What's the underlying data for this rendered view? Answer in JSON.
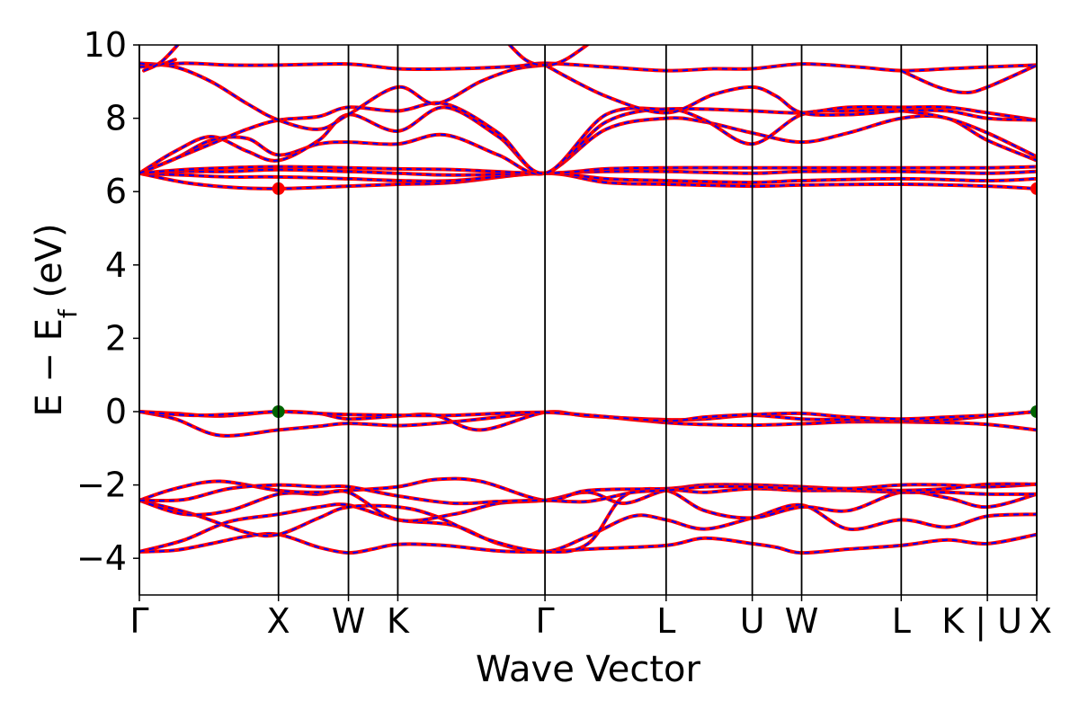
{
  "chart_data": {
    "type": "line",
    "title": "",
    "xlabel": "Wave Vector",
    "ylabel": "E − E",
    "ylabel_subscript": "f",
    "ylabel_unit": " (eV)",
    "ylim": [
      -5,
      10
    ],
    "yticks": [
      -4,
      -2,
      0,
      2,
      4,
      6,
      8,
      10
    ],
    "ytick_labels": [
      "−4",
      "−2",
      "0",
      "2",
      "4",
      "6",
      "8",
      "10"
    ],
    "xlim": [
      0,
      10
    ],
    "kpoints": [
      {
        "label": "Γ",
        "x": 0.0
      },
      {
        "label": "X",
        "x": 1.55
      },
      {
        "label": "W",
        "x": 2.33
      },
      {
        "label": "K",
        "x": 2.88
      },
      {
        "label": "Γ",
        "x": 4.52
      },
      {
        "label": "L",
        "x": 5.87
      },
      {
        "label": "U",
        "x": 6.83
      },
      {
        "label": "W",
        "x": 7.38
      },
      {
        "label": "L",
        "x": 8.49
      },
      {
        "label": "K | U",
        "x": 9.45
      },
      {
        "label": "X",
        "x": 10.0
      }
    ],
    "line_colors": {
      "primary": "#ff0000",
      "secondary": "#0000ff"
    },
    "marker_colors": {
      "cbm": "#ff0000",
      "vbm": "#006400"
    },
    "cbm_points": [
      {
        "x": 1.55,
        "y": 6.08
      },
      {
        "x": 10.0,
        "y": 6.08
      }
    ],
    "vbm_points": [
      {
        "x": 1.55,
        "y": 0.0
      },
      {
        "x": 10.0,
        "y": 0.0
      }
    ],
    "bands": [
      {
        "name": "v1",
        "x": [
          0,
          0.4,
          0.8,
          1.2,
          1.55,
          2.0,
          2.33,
          2.6,
          2.88,
          3.4,
          4.0,
          4.52,
          5.0,
          5.87,
          6.3,
          6.83,
          7.1,
          7.38,
          7.9,
          8.49,
          9.0,
          9.45,
          10.0
        ],
        "y": [
          -3.82,
          -3.78,
          -3.6,
          -3.4,
          -3.35,
          -3.7,
          -3.85,
          -3.75,
          -3.62,
          -3.65,
          -3.8,
          -3.82,
          -3.75,
          -3.65,
          -3.45,
          -3.6,
          -3.7,
          -3.85,
          -3.75,
          -3.65,
          -3.5,
          -3.6,
          -3.35
        ]
      },
      {
        "name": "v2",
        "x": [
          0,
          0.5,
          1.0,
          1.55,
          2.0,
          2.33,
          2.88,
          3.5,
          4.0,
          4.52,
          5.0,
          5.5,
          5.87,
          6.3,
          6.83,
          7.38,
          7.9,
          8.49,
          9.0,
          9.45,
          10.0
        ],
        "y": [
          -3.82,
          -3.5,
          -3.0,
          -2.8,
          -2.6,
          -2.55,
          -2.95,
          -3.1,
          -3.6,
          -3.82,
          -3.4,
          -2.85,
          -2.95,
          -3.2,
          -2.9,
          -2.55,
          -3.2,
          -2.95,
          -3.15,
          -2.85,
          -2.8
        ]
      },
      {
        "name": "v3",
        "x": [
          0,
          0.6,
          1.2,
          1.55,
          2.0,
          2.33,
          2.88,
          3.3,
          3.9,
          4.52,
          5.0,
          5.4,
          5.87,
          6.3,
          6.83,
          7.38,
          7.9,
          8.49,
          9.0,
          9.45,
          10.0
        ],
        "y": [
          -2.42,
          -2.8,
          -3.3,
          -3.35,
          -2.9,
          -2.6,
          -2.6,
          -2.85,
          -3.5,
          -3.82,
          -3.6,
          -2.3,
          -2.15,
          -2.7,
          -2.9,
          -2.6,
          -2.7,
          -2.2,
          -2.35,
          -2.6,
          -2.25
        ]
      },
      {
        "name": "v4",
        "x": [
          0,
          0.5,
          1.0,
          1.55,
          2.0,
          2.33,
          2.88,
          3.5,
          4.0,
          4.52,
          5.0,
          5.4,
          5.87,
          6.3,
          6.83,
          7.38,
          7.9,
          8.49,
          9.0,
          9.45,
          10.0
        ],
        "y": [
          -2.42,
          -2.8,
          -2.7,
          -2.25,
          -2.25,
          -2.2,
          -2.95,
          -2.8,
          -2.5,
          -2.42,
          -2.2,
          -2.5,
          -2.15,
          -2.2,
          -2.1,
          -2.15,
          -2.15,
          -2.2,
          -2.2,
          -2.25,
          -2.25
        ]
      },
      {
        "name": "v5",
        "x": [
          0,
          0.4,
          0.9,
          1.55,
          2.0,
          2.33,
          2.88,
          3.3,
          3.8,
          4.52,
          5.0,
          5.87,
          6.3,
          6.83,
          7.38,
          7.9,
          8.49,
          9.0,
          9.45,
          10.0
        ],
        "y": [
          -2.42,
          -2.1,
          -1.9,
          -2.15,
          -2.2,
          -2.15,
          -2.05,
          -1.85,
          -1.9,
          -2.42,
          -2.15,
          -2.1,
          -2.0,
          -2.0,
          -2.05,
          -2.1,
          -2.0,
          -2.0,
          -2.05,
          -1.98
        ]
      },
      {
        "name": "v6",
        "x": [
          0,
          0.5,
          1.0,
          1.55,
          2.0,
          2.33,
          2.88,
          3.5,
          4.0,
          4.52,
          5.0,
          5.5,
          5.87,
          6.3,
          6.83,
          7.38,
          7.9,
          8.49,
          9.0,
          9.45,
          10.0
        ],
        "y": [
          -2.42,
          -2.4,
          -2.1,
          -2.0,
          -2.05,
          -2.05,
          -2.3,
          -2.5,
          -2.45,
          -2.42,
          -2.45,
          -2.2,
          -2.15,
          -2.05,
          -2.05,
          -2.1,
          -2.1,
          -2.15,
          -2.1,
          -1.98,
          -1.98
        ]
      },
      {
        "name": "v7",
        "x": [
          0,
          0.4,
          0.9,
          1.55,
          2.0,
          2.33,
          2.88,
          3.4,
          4.0,
          4.52,
          5.0,
          5.87,
          6.3,
          6.83,
          7.38,
          7.9,
          8.49,
          9.0,
          9.45,
          10.0
        ],
        "y": [
          0.0,
          -0.2,
          -0.65,
          -0.5,
          -0.4,
          -0.32,
          -0.38,
          -0.3,
          -0.15,
          -0.02,
          -0.1,
          -0.3,
          -0.35,
          -0.37,
          -0.33,
          -0.28,
          -0.28,
          -0.3,
          -0.35,
          -0.5
        ]
      },
      {
        "name": "v8",
        "x": [
          0,
          0.4,
          0.9,
          1.55,
          2.0,
          2.33,
          2.88,
          3.3,
          3.8,
          4.52,
          5.0,
          5.87,
          6.3,
          6.83,
          7.38,
          7.9,
          8.49,
          9.0,
          9.45,
          10.0
        ],
        "y": [
          0.0,
          -0.05,
          -0.12,
          0.0,
          -0.05,
          -0.2,
          -0.12,
          -0.1,
          -0.5,
          -0.02,
          -0.12,
          -0.22,
          -0.2,
          -0.1,
          -0.2,
          -0.22,
          -0.25,
          -0.22,
          -0.12,
          0.0
        ]
      },
      {
        "name": "v9",
        "x": [
          0,
          0.6,
          1.2,
          1.55,
          2.0,
          2.33,
          2.88,
          3.5,
          4.0,
          4.52,
          5.0,
          5.87,
          6.3,
          6.83,
          7.38,
          7.9,
          8.49,
          9.0,
          9.45,
          10.0
        ],
        "y": [
          0.0,
          -0.1,
          -0.05,
          0.0,
          -0.05,
          -0.08,
          -0.1,
          -0.1,
          -0.05,
          -0.02,
          -0.1,
          -0.25,
          -0.15,
          -0.08,
          -0.05,
          -0.15,
          -0.2,
          -0.15,
          -0.1,
          0.0
        ]
      },
      {
        "name": "c1",
        "x": [
          0,
          0.5,
          1.0,
          1.55,
          2.33,
          2.88,
          3.5,
          4.52,
          5.2,
          5.87,
          6.83,
          7.38,
          8.49,
          9.45,
          10.0
        ],
        "y": [
          6.5,
          6.25,
          6.12,
          6.08,
          6.15,
          6.2,
          6.25,
          6.5,
          6.25,
          6.2,
          6.15,
          6.18,
          6.2,
          6.15,
          6.08
        ]
      },
      {
        "name": "c2",
        "x": [
          0,
          0.5,
          1.0,
          1.55,
          2.33,
          2.88,
          3.5,
          4.52,
          5.2,
          5.87,
          6.83,
          7.38,
          8.49,
          9.45,
          10.0
        ],
        "y": [
          6.5,
          6.45,
          6.4,
          6.4,
          6.35,
          6.3,
          6.3,
          6.5,
          6.35,
          6.3,
          6.25,
          6.3,
          6.35,
          6.3,
          6.35
        ]
      },
      {
        "name": "c3",
        "x": [
          0,
          0.5,
          1.0,
          1.55,
          2.33,
          2.88,
          3.5,
          4.52,
          5.2,
          5.87,
          6.83,
          7.38,
          8.49,
          9.45,
          10.0
        ],
        "y": [
          6.5,
          6.55,
          6.55,
          6.6,
          6.55,
          6.5,
          6.45,
          6.5,
          6.55,
          6.55,
          6.5,
          6.55,
          6.55,
          6.5,
          6.55
        ]
      },
      {
        "name": "c4",
        "x": [
          0,
          0.5,
          1.0,
          1.55,
          2.33,
          2.88,
          3.5,
          4.52,
          5.2,
          5.87,
          6.83,
          7.38,
          8.49,
          9.45,
          10.0
        ],
        "y": [
          6.5,
          6.6,
          6.65,
          6.68,
          6.65,
          6.62,
          6.6,
          6.5,
          6.62,
          6.65,
          6.65,
          6.65,
          6.65,
          6.65,
          6.68
        ]
      },
      {
        "name": "c5",
        "x": [
          0,
          0.4,
          0.8,
          1.2,
          1.55,
          2.0,
          2.33,
          2.88,
          3.4,
          4.0,
          4.52,
          5.2,
          5.87,
          6.3,
          6.83,
          7.38,
          7.9,
          8.49,
          9.0,
          9.45,
          10.0
        ],
        "y": [
          6.5,
          6.9,
          7.4,
          7.45,
          7.0,
          7.3,
          7.35,
          7.3,
          7.55,
          7.0,
          6.5,
          7.7,
          8.0,
          7.9,
          7.6,
          7.35,
          7.6,
          8.0,
          8.0,
          7.4,
          6.85
        ]
      },
      {
        "name": "c6",
        "x": [
          0,
          0.4,
          0.8,
          1.2,
          1.55,
          2.0,
          2.33,
          2.88,
          3.4,
          4.0,
          4.52,
          5.2,
          5.87,
          6.3,
          6.83,
          7.38,
          7.9,
          8.49,
          9.0,
          9.45,
          10.0
        ],
        "y": [
          6.5,
          7.1,
          7.5,
          7.1,
          6.85,
          7.4,
          8.1,
          7.65,
          8.3,
          7.5,
          6.5,
          7.9,
          8.25,
          7.95,
          7.3,
          8.1,
          8.2,
          8.2,
          8.0,
          7.6,
          6.95
        ]
      },
      {
        "name": "c7",
        "x": [
          0,
          0.4,
          0.8,
          1.2,
          1.55,
          2.0,
          2.33,
          2.88,
          3.4,
          4.0,
          4.52,
          5.2,
          5.87,
          6.3,
          6.83,
          7.38,
          7.9,
          8.49,
          9.0,
          9.45,
          10.0
        ],
        "y": [
          6.5,
          6.9,
          7.3,
          7.7,
          7.95,
          8.05,
          8.3,
          8.2,
          8.4,
          7.6,
          6.5,
          8.1,
          8.25,
          8.25,
          8.2,
          8.15,
          8.3,
          8.3,
          8.3,
          8.15,
          7.95
        ]
      },
      {
        "name": "c8",
        "x": [
          0,
          0.4,
          0.8,
          1.2,
          1.55,
          2.0,
          2.33,
          2.88,
          3.3,
          3.8,
          4.2,
          4.52
        ],
        "y": [
          9.5,
          9.4,
          9.0,
          8.4,
          7.95,
          7.7,
          8.1,
          8.85,
          8.4,
          9.0,
          9.35,
          9.45
        ]
      },
      {
        "name": "c9",
        "x": [
          4.52,
          5.2,
          5.87,
          6.4,
          6.83,
          7.1,
          7.38,
          7.9,
          8.49,
          9.0,
          9.45,
          10.0
        ],
        "y": [
          9.45,
          8.6,
          8.15,
          8.65,
          8.85,
          8.6,
          8.15,
          8.1,
          8.2,
          8.2,
          8.0,
          7.95
        ]
      },
      {
        "name": "c10",
        "x": [
          0,
          0.5,
          1.0,
          1.55,
          2.33,
          2.88,
          3.5,
          4.2,
          4.52,
          5.2,
          5.87,
          6.4,
          6.83,
          7.38,
          8.0,
          8.49,
          9.0,
          9.45,
          10.0
        ],
        "y": [
          9.4,
          9.5,
          9.45,
          9.45,
          9.48,
          9.35,
          9.35,
          9.42,
          9.5,
          9.4,
          9.3,
          9.35,
          9.35,
          9.48,
          9.4,
          9.3,
          9.35,
          9.4,
          9.45
        ]
      },
      {
        "name": "c11",
        "x": [
          0,
          0.2,
          0.4
        ],
        "y": [
          9.5,
          9.45,
          9.6
        ]
      },
      {
        "name": "c12",
        "x": [
          0.05,
          0.25,
          0.5
        ],
        "y": [
          9.3,
          9.55,
          10.2
        ]
      },
      {
        "name": "c13",
        "x": [
          8.49,
          8.9,
          9.2,
          9.45,
          10.0
        ],
        "y": [
          9.3,
          8.85,
          8.7,
          8.85,
          9.45
        ]
      },
      {
        "name": "c14",
        "x": [
          4.05,
          4.3,
          4.52,
          4.75,
          5.1
        ],
        "y": [
          10.2,
          9.6,
          9.45,
          9.6,
          10.2
        ]
      }
    ]
  }
}
